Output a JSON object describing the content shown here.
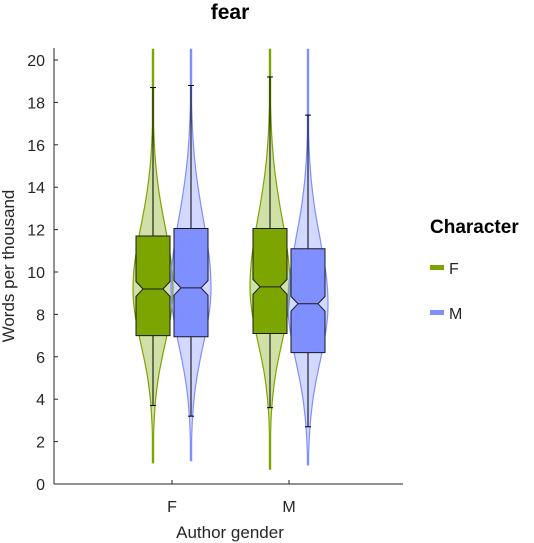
{
  "chart_data": {
    "type": "violin-box",
    "title": "fear",
    "xlabel": "Author gender",
    "ylabel": "Words per thousand",
    "ylim": [
      0,
      20.5
    ],
    "yticks": [
      0,
      2,
      4,
      6,
      8,
      10,
      12,
      14,
      16,
      18,
      20
    ],
    "categories": [
      "F",
      "M"
    ],
    "legend": {
      "title": "Character",
      "position": "right"
    },
    "series": [
      {
        "name": "F",
        "color": "#7CA500",
        "values": [
          {
            "category": "F",
            "min": 1.0,
            "whisker_low": 3.7,
            "q1": 7.0,
            "median": 9.2,
            "q3": 11.7,
            "whisker_high": 18.7,
            "max": 20.5,
            "notch_low": 8.85,
            "notch_high": 9.55
          },
          {
            "category": "M",
            "min": 0.7,
            "whisker_low": 3.6,
            "q1": 7.1,
            "median": 9.3,
            "q3": 12.05,
            "whisker_high": 19.2,
            "max": 20.5,
            "notch_low": 8.95,
            "notch_high": 9.65
          }
        ]
      },
      {
        "name": "M",
        "color": "#7F8FFF",
        "values": [
          {
            "category": "F",
            "min": 1.1,
            "whisker_low": 3.2,
            "q1": 6.95,
            "median": 9.25,
            "q3": 12.05,
            "whisker_high": 18.8,
            "max": 20.5,
            "notch_low": 8.9,
            "notch_high": 9.6
          },
          {
            "category": "M",
            "min": 0.9,
            "whisker_low": 2.7,
            "q1": 6.2,
            "median": 8.5,
            "q3": 11.1,
            "whisker_high": 17.4,
            "max": 20.5,
            "notch_low": 8.15,
            "notch_high": 8.85
          }
        ]
      }
    ]
  }
}
